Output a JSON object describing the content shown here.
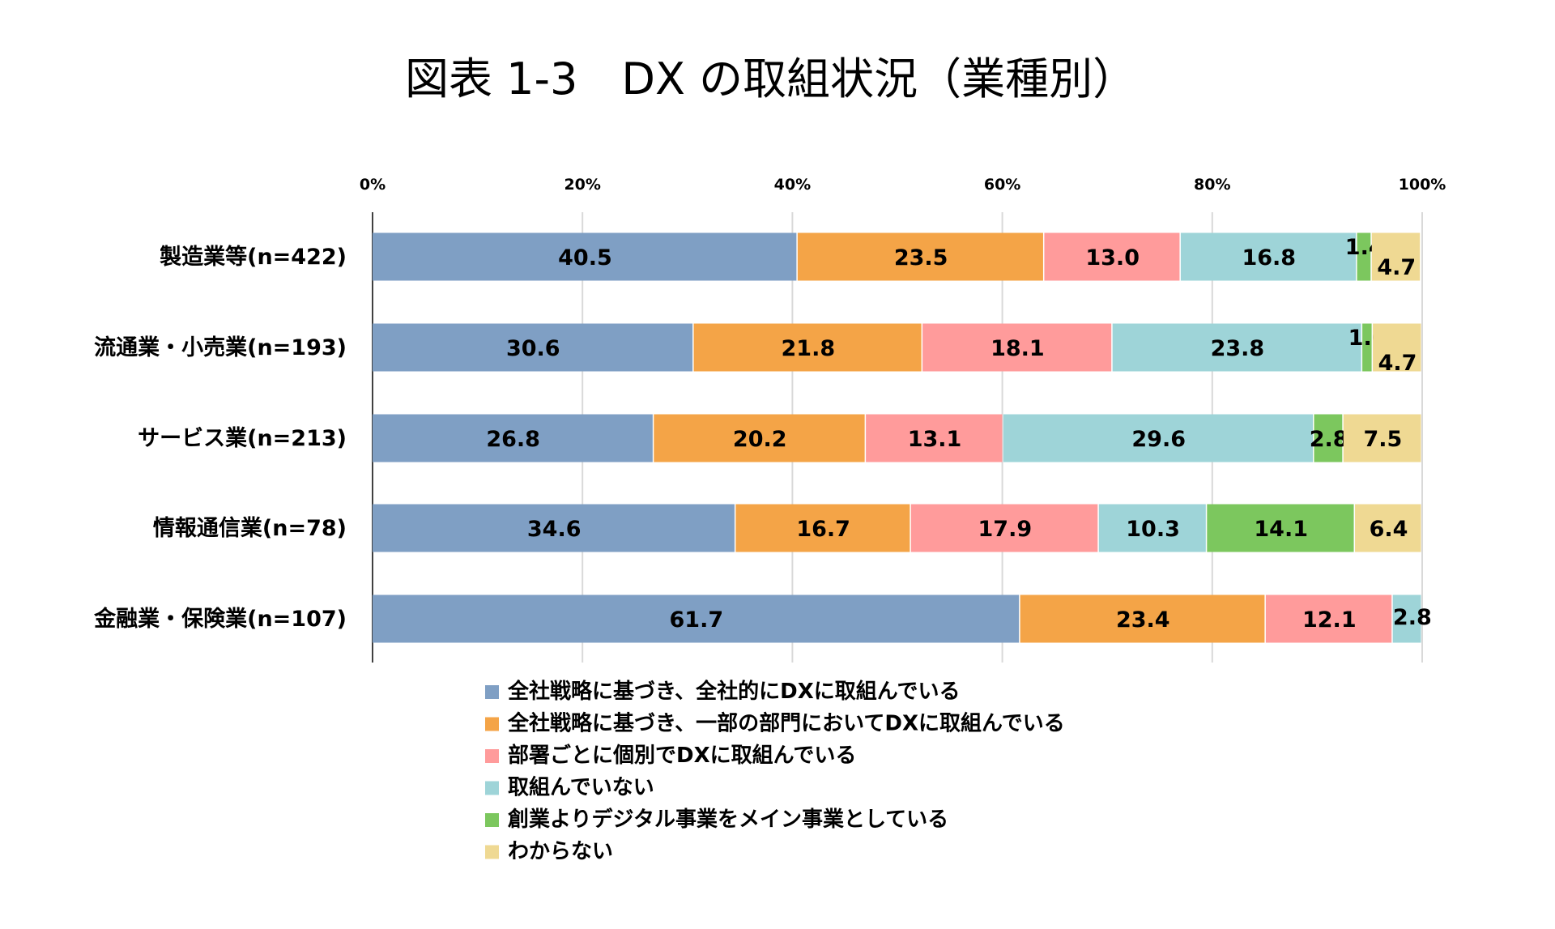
{
  "chart_data": {
    "type": "bar",
    "orientation": "horizontal",
    "stacked": true,
    "title": "図表 1-3　DX の取組状況（業種別）",
    "xlim": [
      0,
      100
    ],
    "xticks": [
      "0%",
      "20%",
      "40%",
      "60%",
      "80%",
      "100%"
    ],
    "grid": true,
    "legend_placement": "bottom",
    "categories": [
      "製造業等(n=422)",
      "流通業・小売業(n=193)",
      "サービス業(n=213)",
      "情報通信業(n=78)",
      "金融業・保険業(n=107)"
    ],
    "series": [
      {
        "name": "全社戦略に基づき、全社的にDXに取組んでいる",
        "color": "#7F9FC4",
        "values": [
          40.5,
          30.6,
          26.8,
          34.6,
          61.7
        ]
      },
      {
        "name": "全社戦略に基づき、一部の部門においてDXに取組んでいる",
        "color": "#F4A447",
        "values": [
          23.5,
          21.8,
          20.2,
          16.7,
          23.4
        ]
      },
      {
        "name": "部署ごとに個別でDXに取組んでいる",
        "color": "#FF9B9B",
        "values": [
          13.0,
          18.1,
          13.1,
          17.9,
          12.1
        ]
      },
      {
        "name": "取組んでいない",
        "color": "#9ED4D8",
        "values": [
          16.8,
          23.8,
          29.6,
          10.3,
          2.8
        ]
      },
      {
        "name": "創業よりデジタル事業をメイン事業としている",
        "color": "#7CC75E",
        "values": [
          1.4,
          1.0,
          2.8,
          14.1,
          null
        ]
      },
      {
        "name": "わからない",
        "color": "#EFD993",
        "values": [
          4.7,
          4.7,
          7.5,
          6.4,
          null
        ]
      }
    ]
  }
}
